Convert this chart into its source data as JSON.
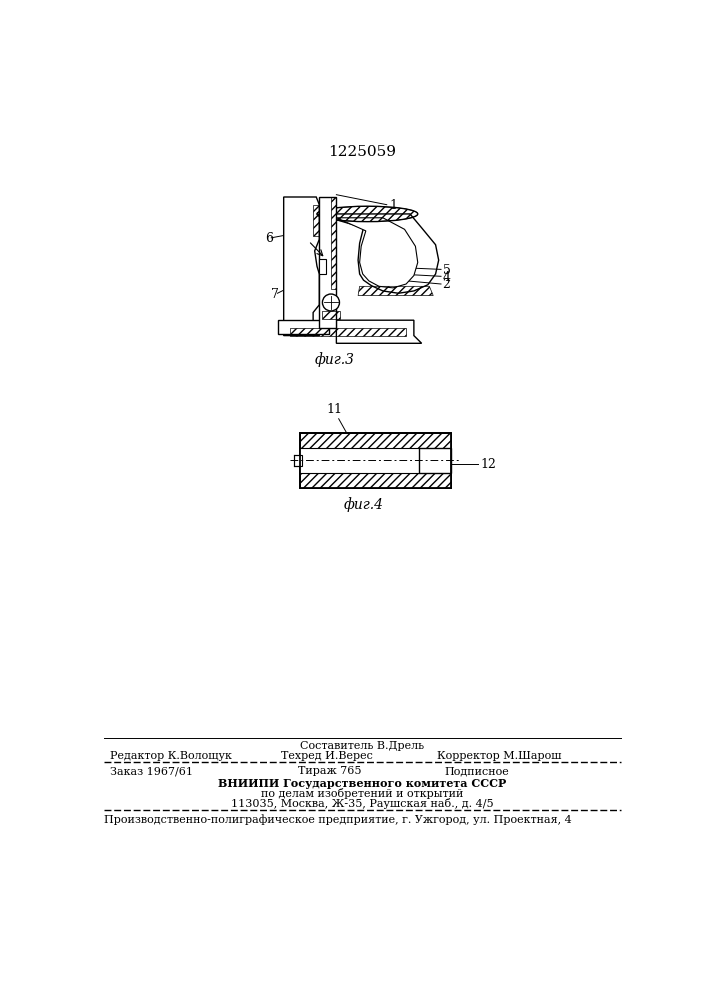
{
  "patent_number": "1225059",
  "fig3_label": "фиг.3",
  "fig4_label": "фиг.4",
  "fig3_numbers": [
    "1",
    "2",
    "4",
    "5",
    "6",
    "7"
  ],
  "fig4_numbers": [
    "11",
    "12"
  ],
  "footer_line1": "Составитель В.Дрель",
  "footer_line2_left": "Редактор К.Волощук",
  "footer_line2_mid": "Техред И.Верес",
  "footer_line2_right": "Корректор М.Шарош",
  "footer_line3_left": "Заказ 1967/61",
  "footer_line3_mid": "Тираж 765",
  "footer_line3_right": "Подписное",
  "footer_line4": "ВНИИПИ Государственного комитета СССР",
  "footer_line5": "по делам изобретений и открытий",
  "footer_line6": "113035, Москва, Ж-35, Раушская наб., д. 4/5",
  "footer_line7": "Производственно-полиграфическое предприятие, г. Ужгород, ул. Проектная, 4",
  "bg_color": "#ffffff"
}
